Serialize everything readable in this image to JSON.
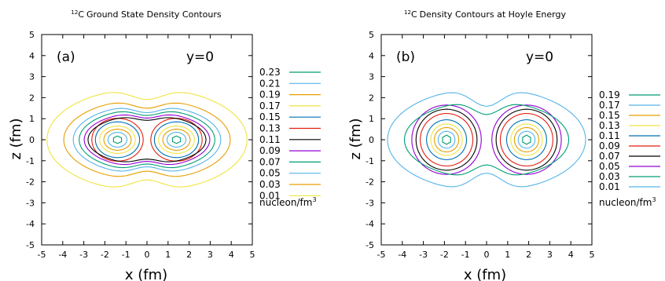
{
  "chart_data": [
    {
      "type": "contour",
      "title": "Ground State Density Contours",
      "title_superscript": "12",
      "title_prefix": "C",
      "panel_label": "(a)",
      "slice_label": "y=0",
      "xlabel": "x (fm)",
      "ylabel": "z (fm)",
      "xlim": [
        -5,
        5
      ],
      "ylim": [
        -5,
        5
      ],
      "xticks": [
        "-5",
        "-4",
        "-3",
        "-2",
        "-1",
        "0",
        "1",
        "2",
        "3",
        "4",
        "5"
      ],
      "yticks": [
        "-5",
        "-4",
        "-3",
        "-2",
        "-1",
        "0",
        "1",
        "2",
        "3",
        "4",
        "5"
      ],
      "legend_placement": "right",
      "legend_unit": "nucleon/fm",
      "legend_unit_superscript": "3",
      "levels": [
        {
          "value": "0.23",
          "color": "#009e73",
          "a": 0.22,
          "b": 0.18
        },
        {
          "value": "0.21",
          "color": "#56b4e9",
          "a": 0.45,
          "b": 0.35
        },
        {
          "value": "0.19",
          "color": "#e69f00",
          "a": 0.65,
          "b": 0.5
        },
        {
          "value": "0.17",
          "color": "#f0e442",
          "a": 0.85,
          "b": 0.65
        },
        {
          "value": "0.15",
          "color": "#0072b2",
          "a": 1.05,
          "b": 0.85
        },
        {
          "value": "0.13",
          "color": "#e51e10",
          "a": 1.22,
          "b": 1.02
        },
        {
          "value": "0.11",
          "color": "#000000",
          "a": 1.4,
          "b": 1.18
        },
        {
          "value": "0.09",
          "color": "#9400d3",
          "a": 1.58,
          "b": 1.32
        },
        {
          "value": "0.07",
          "color": "#009e73",
          "a": 1.82,
          "b": 1.48
        },
        {
          "value": "0.05",
          "color": "#56b4e9",
          "a": 2.1,
          "b": 1.65
        },
        {
          "value": "0.03",
          "color": "#e69f00",
          "a": 2.55,
          "b": 1.92
        },
        {
          "value": "0.01",
          "color": "#f0e442",
          "a": 3.35,
          "b": 2.45
        }
      ],
      "centers": [
        -1.4,
        1.4
      ]
    },
    {
      "type": "contour",
      "title": "Density Contours at Hoyle Energy",
      "title_superscript": "12",
      "title_prefix": "C",
      "panel_label": "(b)",
      "slice_label": "y=0",
      "xlabel": "x (fm)",
      "ylabel": "z (fm)",
      "xlim": [
        -5,
        5
      ],
      "ylim": [
        -5,
        5
      ],
      "xticks": [
        "-5",
        "-4",
        "-3",
        "-2",
        "-1",
        "0",
        "1",
        "2",
        "3",
        "4",
        "5"
      ],
      "yticks": [
        "-5",
        "-4",
        "-3",
        "-2",
        "-1",
        "0",
        "1",
        "2",
        "3",
        "4",
        "5"
      ],
      "legend_placement": "right",
      "legend_unit": "nucleon/fm",
      "legend_unit_superscript": "3",
      "levels": [
        {
          "value": "0.19",
          "color": "#009e73",
          "a": 0.22,
          "b": 0.22
        },
        {
          "value": "0.17",
          "color": "#56b4e9",
          "a": 0.4,
          "b": 0.4
        },
        {
          "value": "0.15",
          "color": "#e69f00",
          "a": 0.58,
          "b": 0.58
        },
        {
          "value": "0.13",
          "color": "#f0e442",
          "a": 0.75,
          "b": 0.75
        },
        {
          "value": "0.11",
          "color": "#0072b2",
          "a": 0.95,
          "b": 0.95
        },
        {
          "value": "0.09",
          "color": "#e51e10",
          "a": 1.25,
          "b": 1.25
        },
        {
          "value": "0.07",
          "color": "#000000",
          "a": 1.45,
          "b": 1.45
        },
        {
          "value": "0.05",
          "color": "#9400d3",
          "a": 1.65,
          "b": 1.65
        },
        {
          "value": "0.03",
          "color": "#009e73",
          "a": 2.0,
          "b": 1.85
        },
        {
          "value": "0.01",
          "color": "#56b4e9",
          "a": 2.8,
          "b": 2.45
        }
      ],
      "centers": [
        -1.9,
        1.9
      ]
    }
  ]
}
